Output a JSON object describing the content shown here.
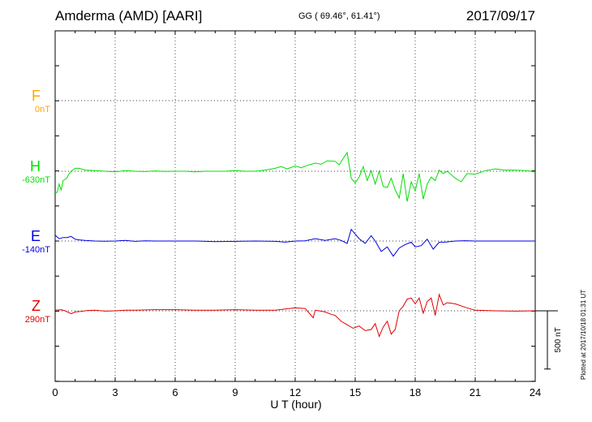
{
  "header": {
    "title": "Amderma (AMD)  [AARI]",
    "coords": "GG ( 69.46°,  61.41°)",
    "date": "2017/09/17",
    "plotted_note": "Plotted at 2017/10/18 01:31  UT"
  },
  "chart_data": {
    "type": "line",
    "title": "Amderma (AMD)  [AARI]",
    "xlabel": "U T (hour)",
    "ylabel": "",
    "xlim": [
      0,
      24
    ],
    "xticks": [
      "0",
      "3",
      "6",
      "9",
      "12",
      "15",
      "18",
      "21",
      "24"
    ],
    "grid": true,
    "scale_bar_label": "500 nT",
    "series": [
      {
        "name": "F",
        "baseline_label": "0nT",
        "color": "#ffa500",
        "x": [],
        "values": []
      },
      {
        "name": "H",
        "baseline_label": "-630nT",
        "color": "#00e000",
        "x": [
          0,
          0.1,
          0.2,
          0.3,
          0.4,
          0.5,
          0.6,
          0.7,
          0.8,
          1.0,
          1.2,
          1.5,
          2.0,
          2.5,
          3.0,
          3.5,
          4.0,
          4.5,
          5.0,
          5.5,
          6.0,
          6.5,
          7.0,
          7.5,
          8.0,
          8.5,
          9.0,
          9.5,
          10.0,
          10.5,
          11.0,
          11.3,
          11.6,
          12.0,
          12.3,
          12.6,
          13.0,
          13.3,
          13.6,
          14.0,
          14.2,
          14.4,
          14.6,
          14.8,
          15.0,
          15.2,
          15.4,
          15.6,
          15.8,
          16.0,
          16.2,
          16.4,
          16.6,
          16.8,
          17.0,
          17.2,
          17.4,
          17.6,
          17.8,
          18.0,
          18.2,
          18.4,
          18.6,
          18.8,
          19.0,
          19.2,
          19.4,
          19.6,
          19.8,
          20.0,
          20.3,
          20.6,
          21.0,
          21.5,
          22.0,
          22.5,
          23.0,
          23.5,
          23.8,
          24.0
        ],
        "values": [
          -190,
          -180,
          -110,
          -160,
          -80,
          -70,
          -55,
          -20,
          0,
          25,
          25,
          10,
          5,
          0,
          -5,
          5,
          0,
          -3,
          3,
          -2,
          0,
          0,
          -5,
          0,
          0,
          0,
          5,
          0,
          0,
          10,
          25,
          40,
          20,
          45,
          30,
          50,
          70,
          60,
          90,
          85,
          55,
          110,
          160,
          -60,
          -100,
          -50,
          40,
          -80,
          5,
          -110,
          0,
          -130,
          -140,
          -60,
          -160,
          -230,
          -20,
          -260,
          -90,
          -170,
          -20,
          -240,
          -110,
          -50,
          -80,
          10,
          -20,
          0,
          -30,
          -60,
          -90,
          -20,
          -25,
          5,
          20,
          10,
          10,
          5,
          0,
          -10
        ]
      },
      {
        "name": "E",
        "baseline_label": "-140nT",
        "color": "#0000e0",
        "x": [
          0,
          0.2,
          0.4,
          0.6,
          0.8,
          1.0,
          1.2,
          1.5,
          2.0,
          2.5,
          3.0,
          3.5,
          4.0,
          4.5,
          5.0,
          6.0,
          7.0,
          8.0,
          9.0,
          10.0,
          11.0,
          11.5,
          12.0,
          12.5,
          13.0,
          13.5,
          14.0,
          14.3,
          14.6,
          14.8,
          15.0,
          15.2,
          15.5,
          15.8,
          16.0,
          16.3,
          16.6,
          16.9,
          17.2,
          17.5,
          17.8,
          18.0,
          18.3,
          18.6,
          18.9,
          19.2,
          19.5,
          20.0,
          20.5,
          21.0,
          22.0,
          23.0,
          24.0
        ],
        "values": [
          50,
          20,
          30,
          30,
          40,
          15,
          10,
          5,
          0,
          -2,
          0,
          5,
          -3,
          2,
          0,
          0,
          0,
          -5,
          -3,
          0,
          -3,
          -10,
          0,
          2,
          20,
          5,
          20,
          5,
          -20,
          100,
          60,
          20,
          -20,
          45,
          0,
          -90,
          -50,
          -130,
          -60,
          -30,
          -10,
          -50,
          -40,
          15,
          -70,
          -10,
          -10,
          0,
          3,
          0,
          0,
          0,
          0
        ]
      },
      {
        "name": "Z",
        "baseline_label": "290nT",
        "color": "#e00000",
        "x": [
          0,
          0.3,
          0.5,
          0.8,
          1.0,
          1.3,
          1.6,
          2.0,
          2.5,
          3.0,
          3.5,
          4.0,
          5.0,
          6.0,
          7.0,
          8.0,
          9.0,
          10.0,
          11.0,
          11.5,
          12.0,
          12.5,
          12.9,
          13.0,
          13.2,
          13.5,
          13.8,
          14.0,
          14.3,
          14.6,
          14.9,
          15.2,
          15.5,
          15.8,
          16.0,
          16.2,
          16.4,
          16.6,
          16.8,
          17.0,
          17.2,
          17.4,
          17.6,
          17.8,
          18.0,
          18.2,
          18.4,
          18.6,
          18.8,
          19.0,
          19.2,
          19.4,
          19.6,
          20.0,
          20.5,
          21.0,
          22.0,
          23.0,
          24.0
        ],
        "values": [
          5,
          10,
          0,
          -25,
          -10,
          -5,
          3,
          5,
          -3,
          0,
          5,
          5,
          10,
          10,
          5,
          5,
          10,
          5,
          5,
          15,
          25,
          20,
          -60,
          5,
          0,
          -10,
          -30,
          -40,
          -90,
          -120,
          -150,
          -130,
          -170,
          -160,
          -110,
          -220,
          -140,
          -90,
          -200,
          -160,
          0,
          40,
          100,
          110,
          60,
          110,
          -20,
          80,
          110,
          -40,
          140,
          50,
          70,
          60,
          30,
          5,
          0,
          -3,
          0
        ]
      }
    ]
  }
}
